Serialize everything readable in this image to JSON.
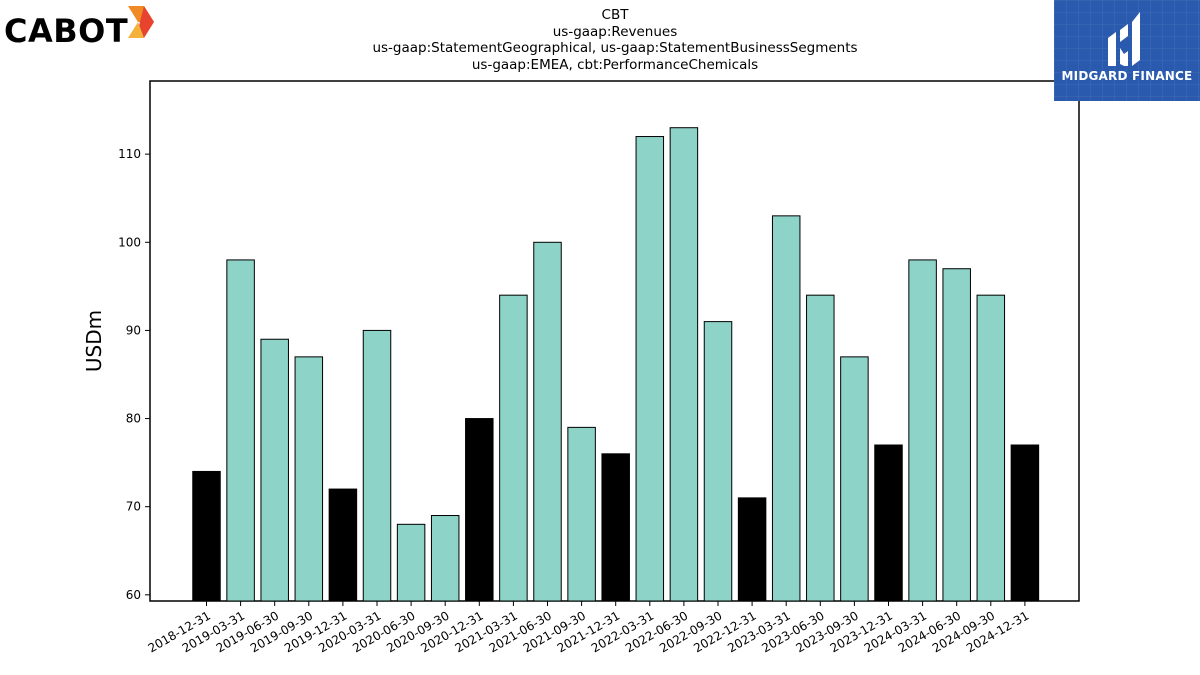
{
  "title_lines": [
    "CBT",
    "us-gaap:Revenues",
    "us-gaap:StatementGeographical, us-gaap:StatementBusinessSegments",
    "us-gaap:EMEA, cbt:PerformanceChemicals"
  ],
  "logos": {
    "left_text": "CABOT",
    "right_text": "MIDGARD FINANCE",
    "right_bg_color": "#2a5aad"
  },
  "colors": {
    "quarter_bar": "#8dd3c7",
    "year_end_bar": "#000000",
    "bar_edge": "#000000"
  },
  "chart_data": {
    "type": "bar",
    "ylabel": "USDm",
    "xlabel": "",
    "ylim": [
      59.3,
      118.3
    ],
    "yticks": [
      60,
      70,
      80,
      90,
      100,
      110
    ],
    "grid": false,
    "categories": [
      "2018-12-31",
      "2019-03-31",
      "2019-06-30",
      "2019-09-30",
      "2019-12-31",
      "2020-03-31",
      "2020-06-30",
      "2020-09-30",
      "2020-12-31",
      "2021-03-31",
      "2021-06-30",
      "2021-09-30",
      "2021-12-31",
      "2022-03-31",
      "2022-06-30",
      "2022-09-30",
      "2022-12-31",
      "2023-03-31",
      "2023-06-30",
      "2023-09-30",
      "2023-12-31",
      "2024-03-31",
      "2024-06-30",
      "2024-09-30",
      "2024-12-31"
    ],
    "values": [
      74,
      98,
      89,
      87,
      72,
      90,
      68,
      69,
      80,
      94,
      100,
      79,
      76,
      112,
      113,
      91,
      71,
      103,
      94,
      87,
      77,
      98,
      97,
      94,
      77
    ],
    "highlight": [
      true,
      false,
      false,
      false,
      true,
      false,
      false,
      false,
      true,
      false,
      false,
      false,
      true,
      false,
      false,
      false,
      true,
      false,
      false,
      false,
      true,
      false,
      false,
      false,
      true
    ]
  }
}
